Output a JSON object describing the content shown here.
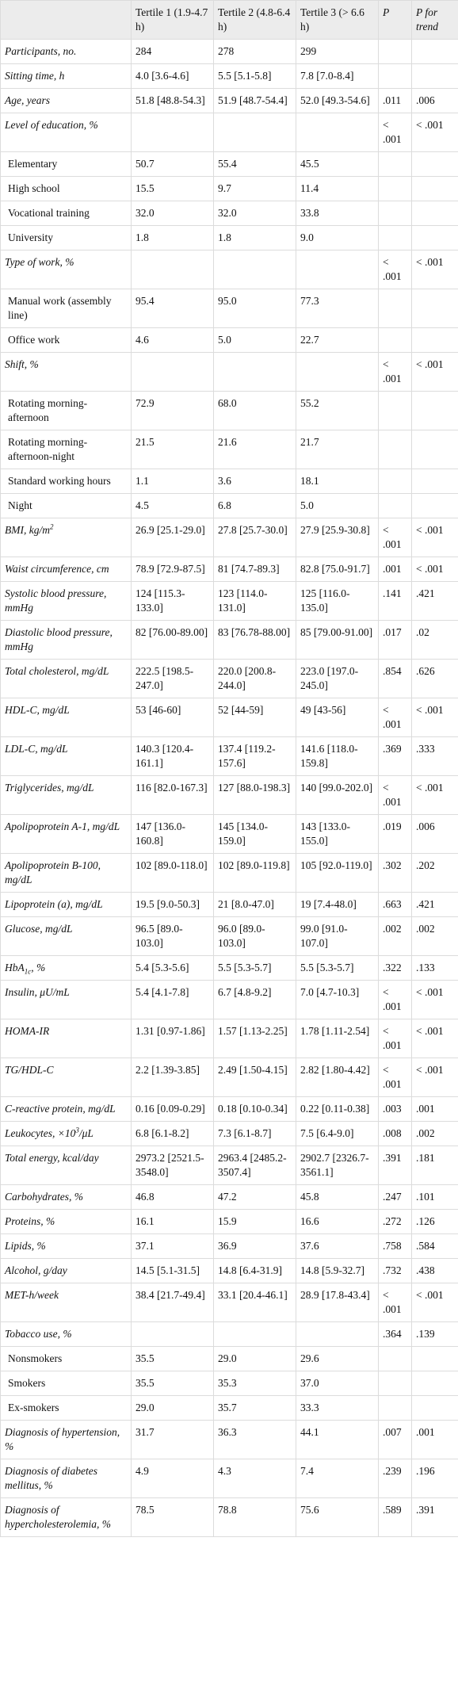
{
  "table": {
    "header": [
      null,
      "Tertile 1 (1.9-4.7 h)",
      "Tertile 2 (4.8-6.4 h)",
      "Tertile 3 (> 6.6 h)",
      "P",
      "P for trend"
    ],
    "rows": [
      {
        "label": "Participants, no.",
        "cells": [
          "284",
          "278",
          "299",
          null,
          null
        ]
      },
      {
        "label": "Sitting time, h",
        "cells": [
          "4.0 [3.6-4.6]",
          "5.5 [5.1-5.8]",
          "7.8 [7.0-8.4]",
          null,
          null
        ]
      },
      {
        "label": "Age, years",
        "cells": [
          "51.8 [48.8-54.3]",
          "51.9 [48.7-54.4]",
          "52.0 [49.3-54.6]",
          ".011",
          ".006"
        ]
      },
      {
        "label": "Level of education, %",
        "cells": [
          null,
          null,
          null,
          "< .001",
          "< .001"
        ]
      },
      {
        "label": "Elementary",
        "indent": true,
        "cells": [
          "50.7",
          "55.4",
          "45.5",
          null,
          null
        ]
      },
      {
        "label": "High school",
        "indent": true,
        "cells": [
          "15.5",
          "9.7",
          "11.4",
          null,
          null
        ]
      },
      {
        "label": "Vocational training",
        "indent": true,
        "cells": [
          "32.0",
          "32.0",
          "33.8",
          null,
          null
        ]
      },
      {
        "label": "University",
        "indent": true,
        "cells": [
          "1.8",
          "1.8",
          "9.0",
          null,
          null
        ]
      },
      {
        "label": "Type of work, %",
        "cells": [
          null,
          null,
          null,
          "< .001",
          "< .001"
        ]
      },
      {
        "label": "Manual work (assembly line)",
        "indent": true,
        "cells": [
          "95.4",
          "95.0",
          "77.3",
          null,
          null
        ]
      },
      {
        "label": "Office work",
        "indent": true,
        "cells": [
          "4.6",
          "5.0",
          "22.7",
          null,
          null
        ]
      },
      {
        "label": "Shift, %",
        "cells": [
          null,
          null,
          null,
          "< .001",
          "< .001"
        ]
      },
      {
        "label": "Rotating morning-afternoon",
        "indent": true,
        "cells": [
          "72.9",
          "68.0",
          "55.2",
          null,
          null
        ]
      },
      {
        "label": "Rotating morning-afternoon-night",
        "indent": true,
        "cells": [
          "21.5",
          "21.6",
          "21.7",
          null,
          null
        ]
      },
      {
        "label": "Standard working hours",
        "indent": true,
        "cells": [
          "1.1",
          "3.6",
          "18.1",
          null,
          null
        ]
      },
      {
        "label": "Night",
        "indent": true,
        "cells": [
          "4.5",
          "6.8",
          "5.0",
          null,
          null
        ]
      },
      {
        "label": "BMI, kg/m",
        "sup": "2",
        "cells": [
          "26.9 [25.1-29.0]",
          "27.8 [25.7-30.0]",
          "27.9 [25.9-30.8]",
          "< .001",
          "< .001"
        ]
      },
      {
        "label": "Waist circumference, cm",
        "cells": [
          "78.9 [72.9-87.5]",
          "81 [74.7-89.3]",
          "82.8 [75.0-91.7]",
          ".001",
          "< .001"
        ]
      },
      {
        "label": "Systolic blood pressure, mmHg",
        "cells": [
          "124 [115.3-133.0]",
          "123 [114.0-131.0]",
          "125 [116.0-135.0]",
          ".141",
          ".421"
        ]
      },
      {
        "label": "Diastolic blood pressure, mmHg",
        "cells": [
          "82 [76.00-89.00]",
          "83 [76.78-88.00]",
          "85 [79.00-91.00]",
          ".017",
          ".02"
        ]
      },
      {
        "label": "Total cholesterol, mg/dL",
        "cells": [
          "222.5 [198.5-247.0]",
          "220.0 [200.8-244.0]",
          "223.0 [197.0-245.0]",
          ".854",
          ".626"
        ]
      },
      {
        "label": "HDL-C, mg/dL",
        "cells": [
          "53 [46-60]",
          "52 [44-59]",
          "49 [43-56]",
          "< .001",
          "< .001"
        ]
      },
      {
        "label": "LDL-C, mg/dL",
        "cells": [
          "140.3 [120.4-161.1]",
          "137.4 [119.2-157.6]",
          "141.6 [118.0-159.8]",
          ".369",
          ".333"
        ]
      },
      {
        "label": "Triglycerides, mg/dL",
        "cells": [
          "116 [82.0-167.3]",
          "127 [88.0-198.3]",
          "140 [99.0-202.0]",
          "< .001",
          "< .001"
        ]
      },
      {
        "label": "Apolipoprotein A-1, mg/dL",
        "cells": [
          "147 [136.0-160.8]",
          "145 [134.0-159.0]",
          "143 [133.0-155.0]",
          ".019",
          ".006"
        ]
      },
      {
        "label": "Apolipoprotein B-100, mg/dL",
        "cells": [
          "102 [89.0-118.0]",
          "102 [89.0-119.8]",
          "105 [92.0-119.0]",
          ".302",
          ".202"
        ]
      },
      {
        "label": "Lipoprotein (a), mg/dL",
        "cells": [
          "19.5 [9.0-50.3]",
          "21 [8.0-47.0]",
          "19 [7.4-48.0]",
          ".663",
          ".421"
        ]
      },
      {
        "label": "Glucose, mg/dL",
        "cells": [
          "96.5 [89.0-103.0]",
          "96.0 [89.0-103.0]",
          "99.0 [91.0-107.0]",
          ".002",
          ".002"
        ]
      },
      {
        "label": "HbA",
        "sub": "1c",
        "tail": ", %",
        "cells": [
          "5.4 [5.3-5.6]",
          "5.5 [5.3-5.7]",
          "5.5 [5.3-5.7]",
          ".322",
          ".133"
        ]
      },
      {
        "label": "Insulin, μU/mL",
        "cells": [
          "5.4 [4.1-7.8]",
          "6.7 [4.8-9.2]",
          "7.0 [4.7-10.3]",
          "< .001",
          "< .001"
        ]
      },
      {
        "label": "HOMA-IR",
        "cells": [
          "1.31 [0.97-1.86]",
          "1.57 [1.13-2.25]",
          "1.78 [1.11-2.54]",
          "< .001",
          "< .001"
        ]
      },
      {
        "label": "TG/HDL-C",
        "cells": [
          "2.2 [1.39-3.85]",
          "2.49 [1.50-4.15]",
          "2.82 [1.80-4.42]",
          "< .001",
          "< .001"
        ]
      },
      {
        "label": "C-reactive protein, mg/dL",
        "cells": [
          "0.16 [0.09-0.29]",
          "0.18 [0.10-0.34]",
          "0.22 [0.11-0.38]",
          ".003",
          ".001"
        ]
      },
      {
        "label": "Leukocytes, ×10",
        "sup": "3",
        "tail": "/μL",
        "cells": [
          "6.8 [6.1-8.2]",
          "7.3 [6.1-8.7]",
          "7.5 [6.4-9.0]",
          ".008",
          ".002"
        ]
      },
      {
        "label": "Total energy, kcal/day",
        "cells": [
          "2973.2 [2521.5-3548.0]",
          "2963.4 [2485.2-3507.4]",
          "2902.7 [2326.7-3561.1]",
          ".391",
          ".181"
        ]
      },
      {
        "label": "Carbohydrates, %",
        "cells": [
          "46.8",
          "47.2",
          "45.8",
          ".247",
          ".101"
        ]
      },
      {
        "label": "Proteins, %",
        "cells": [
          "16.1",
          "15.9",
          "16.6",
          ".272",
          ".126"
        ]
      },
      {
        "label": "Lipids, %",
        "cells": [
          "37.1",
          "36.9",
          "37.6",
          ".758",
          ".584"
        ]
      },
      {
        "label": "Alcohol, g/day",
        "cells": [
          "14.5 [5.1-31.5]",
          "14.8 [6.4-31.9]",
          "14.8 [5.9-32.7]",
          ".732",
          ".438"
        ]
      },
      {
        "label": "MET-h/week",
        "cells": [
          "38.4 [21.7-49.4]",
          "33.1 [20.4-46.1]",
          "28.9 [17.8-43.4]",
          "< .001",
          "< .001"
        ]
      },
      {
        "label": "Tobacco use, %",
        "cells": [
          null,
          null,
          null,
          ".364",
          ".139"
        ]
      },
      {
        "label": "Nonsmokers",
        "indent": true,
        "cells": [
          "35.5",
          "29.0",
          "29.6",
          null,
          null
        ]
      },
      {
        "label": "Smokers",
        "indent": true,
        "cells": [
          "35.5",
          "35.3",
          "37.0",
          null,
          null
        ]
      },
      {
        "label": "Ex-smokers",
        "indent": true,
        "cells": [
          "29.0",
          "35.7",
          "33.3",
          null,
          null
        ]
      },
      {
        "label": "Diagnosis of hypertension, %",
        "cells": [
          "31.7",
          "36.3",
          "44.1",
          ".007",
          ".001"
        ]
      },
      {
        "label": "Diagnosis of diabetes mellitus, %",
        "cells": [
          "4.9",
          "4.3",
          "7.4",
          ".239",
          ".196"
        ]
      },
      {
        "label": "Diagnosis of hypercholesterolemia, %",
        "cells": [
          "78.5",
          "78.8",
          "75.6",
          ".589",
          ".391"
        ]
      }
    ]
  }
}
